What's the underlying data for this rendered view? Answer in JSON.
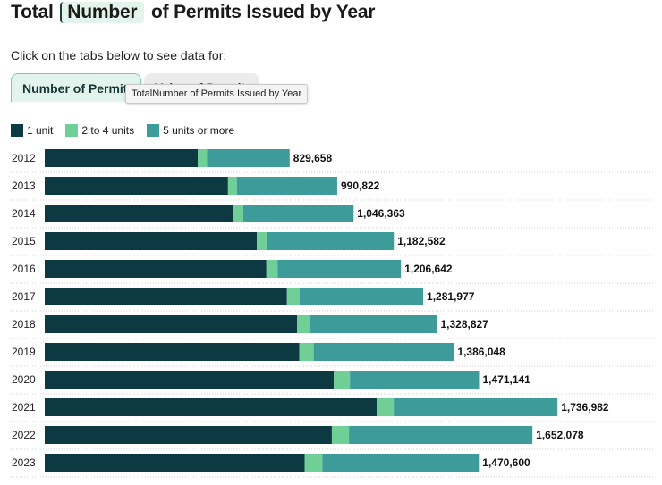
{
  "title": {
    "prefix": "Total",
    "highlight": "Number",
    "suffix": "of Permits Issued by Year"
  },
  "subtitle": "Click on the tabs below to see data for:",
  "tabs": [
    {
      "label": "Number of Permits",
      "active": true
    },
    {
      "label": "Value of Permits",
      "active": false
    }
  ],
  "tooltip": "TotalNumber of Permits Issued by Year",
  "colors": {
    "one_unit": "#0d3a42",
    "two_to_four": "#6fcf97",
    "five_plus": "#3d9c9a"
  },
  "chart_data": {
    "type": "bar",
    "orientation": "horizontal",
    "stacked": true,
    "categories": [
      "2012",
      "2013",
      "2014",
      "2015",
      "2016",
      "2017",
      "2018",
      "2019",
      "2020",
      "2021",
      "2022",
      "2023"
    ],
    "series": [
      {
        "name": "1 unit",
        "values": [
          518695,
          620802,
          639961,
          718525,
          750797,
          820524,
          854584,
          862067,
          979360,
          1124750,
          972562,
          880300
        ]
      },
      {
        "name": "2 to 4 units",
        "values": [
          30900,
          30000,
          32600,
          34200,
          38400,
          43000,
          44400,
          49000,
          54400,
          57500,
          58000,
          60000
        ]
      },
      {
        "name": "5 units or more",
        "values": [
          280063,
          340020,
          373802,
          429857,
          417445,
          418453,
          429843,
          474981,
          437381,
          554732,
          621516,
          530300
        ]
      }
    ],
    "totals": [
      "829,658",
      "990,822",
      "1,046,363",
      "1,182,582",
      "1,206,642",
      "1,281,977",
      "1,328,827",
      "1,386,048",
      "1,471,141",
      "1,736,982",
      "1,652,078",
      "1,470,600"
    ],
    "legend_position": "top-left",
    "xlim": [
      0,
      2200000
    ],
    "grid": false
  }
}
